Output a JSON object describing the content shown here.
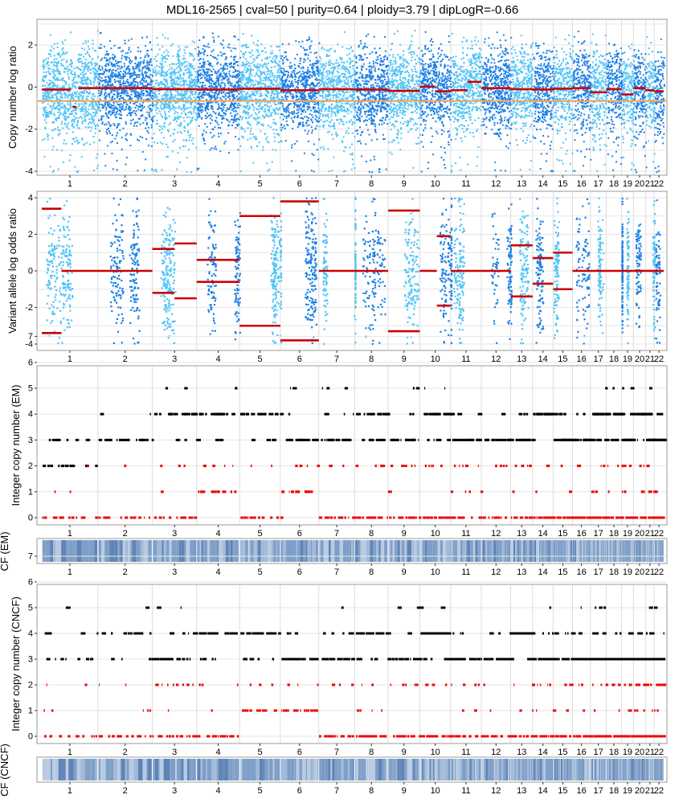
{
  "title": "MDL16-2565 | cval=50 | purity=0.64 | ploidy=3.79 | dipLogR=-0.66",
  "colors": {
    "light_blue": "#4fc3f7",
    "dark_blue": "#1a7fe6",
    "segment_red": "#cc0000",
    "diplogr_line": "#e8a86a",
    "total_cn": "#000000",
    "minor_cn": "#ee0000",
    "cf_base": "#7d9fc8",
    "cf_light": "#b9cbe2",
    "cf_dark": "#5f84b5",
    "grid": "#e6e6e6",
    "panel_border": "#9a9a9a"
  },
  "chart_data": {
    "type": "scatter",
    "chromosomes": [
      "1",
      "2",
      "3",
      "4",
      "5",
      "6",
      "7",
      "8",
      "9",
      "10",
      "11",
      "12",
      "13",
      "14",
      "15",
      "16",
      "17",
      "18",
      "19",
      "20",
      "21",
      "22"
    ],
    "chrom_bounds": [
      0,
      1.0,
      1.97,
      2.76,
      3.525,
      4.25,
      4.935,
      5.575,
      6.17,
      6.735,
      7.285,
      7.83,
      8.355,
      8.745,
      9.11,
      9.455,
      9.775,
      10.055,
      10.33,
      10.54,
      10.76,
      10.91,
      11.08
    ],
    "panels": [
      {
        "id": "cnlr",
        "ylabel": "Copy number log ratio",
        "ylim": [
          -4.2,
          3.3
        ],
        "yticks": [
          -4,
          -2,
          0,
          2
        ],
        "diplogr": -0.66,
        "segments": [
          {
            "chrom": "1",
            "from": 0.0,
            "to": 0.52,
            "y": -0.12
          },
          {
            "chrom": "1",
            "from": 0.55,
            "to": 0.62,
            "y": -0.95
          },
          {
            "chrom": "1",
            "from": 0.65,
            "to": 1.0,
            "y": -0.05
          },
          {
            "chrom": "2",
            "from": 0.0,
            "to": 1.0,
            "y": -0.05
          },
          {
            "chrom": "3",
            "from": 0.0,
            "to": 1.0,
            "y": -0.1
          },
          {
            "chrom": "4",
            "from": 0.0,
            "to": 1.0,
            "y": -0.12
          },
          {
            "chrom": "5",
            "from": 0.0,
            "to": 1.0,
            "y": -0.08
          },
          {
            "chrom": "6",
            "from": 0.0,
            "to": 1.0,
            "y": -0.15
          },
          {
            "chrom": "7",
            "from": 0.0,
            "to": 1.0,
            "y": -0.1
          },
          {
            "chrom": "8",
            "from": 0.0,
            "to": 1.0,
            "y": -0.12
          },
          {
            "chrom": "9",
            "from": 0.0,
            "to": 1.0,
            "y": -0.18
          },
          {
            "chrom": "10",
            "from": 0.0,
            "to": 0.5,
            "y": 0.02
          },
          {
            "chrom": "10",
            "from": 0.5,
            "to": 1.0,
            "y": -0.2
          },
          {
            "chrom": "11",
            "from": 0.0,
            "to": 0.55,
            "y": -0.15
          },
          {
            "chrom": "11",
            "from": 0.55,
            "to": 1.0,
            "y": 0.25
          },
          {
            "chrom": "12",
            "from": 0.0,
            "to": 1.0,
            "y": -0.05
          },
          {
            "chrom": "13",
            "from": 0.0,
            "to": 1.0,
            "y": -0.1
          },
          {
            "chrom": "14",
            "from": 0.0,
            "to": 1.0,
            "y": -0.12
          },
          {
            "chrom": "15",
            "from": 0.0,
            "to": 1.0,
            "y": -0.08
          },
          {
            "chrom": "16",
            "from": 0.0,
            "to": 1.0,
            "y": -0.05
          },
          {
            "chrom": "17",
            "from": 0.0,
            "to": 1.0,
            "y": -0.25
          },
          {
            "chrom": "18",
            "from": 0.0,
            "to": 1.0,
            "y": -0.1
          },
          {
            "chrom": "19",
            "from": 0.0,
            "to": 1.0,
            "y": -0.35
          },
          {
            "chrom": "20",
            "from": 0.0,
            "to": 1.0,
            "y": -0.05
          },
          {
            "chrom": "21",
            "from": 0.0,
            "to": 1.0,
            "y": -0.15
          },
          {
            "chrom": "22",
            "from": 0.0,
            "to": 1.0,
            "y": -0.2
          }
        ]
      },
      {
        "id": "valor",
        "ylabel": "Variant allele log odds ratio",
        "ylim": [
          -4.4,
          4.4
        ],
        "yticks": [
          -4,
          -2,
          0,
          2,
          4
        ],
        "segments": [
          {
            "chrom": "1",
            "from": 0.0,
            "to": 0.35,
            "y": 3.4
          },
          {
            "chrom": "1",
            "from": 0.0,
            "to": 0.35,
            "y": -3.4
          },
          {
            "chrom": "1",
            "from": 0.35,
            "to": 1.0,
            "y": 0.0
          },
          {
            "chrom": "2",
            "from": 0.0,
            "to": 1.0,
            "y": 0.0
          },
          {
            "chrom": "3",
            "from": 0.0,
            "to": 0.5,
            "y": 1.2
          },
          {
            "chrom": "3",
            "from": 0.0,
            "to": 0.5,
            "y": -1.2
          },
          {
            "chrom": "3",
            "from": 0.5,
            "to": 1.0,
            "y": 1.5
          },
          {
            "chrom": "3",
            "from": 0.5,
            "to": 1.0,
            "y": -1.5
          },
          {
            "chrom": "4",
            "from": 0.0,
            "to": 1.0,
            "y": 0.6
          },
          {
            "chrom": "4",
            "from": 0.0,
            "to": 1.0,
            "y": -0.6
          },
          {
            "chrom": "5",
            "from": 0.0,
            "to": 1.0,
            "y": 3.0
          },
          {
            "chrom": "5",
            "from": 0.0,
            "to": 1.0,
            "y": -3.0
          },
          {
            "chrom": "6",
            "from": 0.0,
            "to": 1.0,
            "y": 3.8
          },
          {
            "chrom": "6",
            "from": 0.0,
            "to": 1.0,
            "y": -3.8
          },
          {
            "chrom": "7",
            "from": 0.0,
            "to": 1.0,
            "y": 0.0
          },
          {
            "chrom": "8",
            "from": 0.0,
            "to": 1.0,
            "y": 0.0
          },
          {
            "chrom": "9",
            "from": 0.0,
            "to": 1.0,
            "y": 3.3
          },
          {
            "chrom": "9",
            "from": 0.0,
            "to": 1.0,
            "y": -3.3
          },
          {
            "chrom": "10",
            "from": 0.0,
            "to": 0.55,
            "y": 0.0
          },
          {
            "chrom": "10",
            "from": 0.55,
            "to": 1.0,
            "y": 1.9
          },
          {
            "chrom": "10",
            "from": 0.55,
            "to": 1.0,
            "y": -1.9
          },
          {
            "chrom": "11",
            "from": 0.0,
            "to": 1.0,
            "y": 0.0
          },
          {
            "chrom": "12",
            "from": 0.0,
            "to": 1.0,
            "y": 0.0
          },
          {
            "chrom": "13",
            "from": 0.0,
            "to": 1.0,
            "y": 1.4
          },
          {
            "chrom": "13",
            "from": 0.0,
            "to": 1.0,
            "y": -1.4
          },
          {
            "chrom": "14",
            "from": 0.0,
            "to": 1.0,
            "y": 0.7
          },
          {
            "chrom": "14",
            "from": 0.0,
            "to": 1.0,
            "y": -0.7
          },
          {
            "chrom": "15",
            "from": 0.0,
            "to": 1.0,
            "y": 1.0
          },
          {
            "chrom": "15",
            "from": 0.0,
            "to": 1.0,
            "y": -1.0
          },
          {
            "chrom": "16",
            "from": 0.0,
            "to": 1.0,
            "y": 0.0
          },
          {
            "chrom": "17",
            "from": 0.0,
            "to": 1.0,
            "y": 0.0
          },
          {
            "chrom": "18",
            "from": 0.0,
            "to": 1.0,
            "y": 0.0
          },
          {
            "chrom": "19",
            "from": 0.0,
            "to": 1.0,
            "y": 0.0
          },
          {
            "chrom": "20",
            "from": 0.0,
            "to": 1.0,
            "y": 0.0
          },
          {
            "chrom": "21",
            "from": 0.0,
            "to": 1.0,
            "y": 0.0
          },
          {
            "chrom": "22",
            "from": 0.0,
            "to": 1.0,
            "y": 0.0
          }
        ]
      },
      {
        "id": "icn_em",
        "ylabel": "Integer copy number (EM)",
        "yticks": [
          0,
          1,
          2,
          3,
          4,
          5,
          6,
          7
        ],
        "total_cn": [
          2,
          3,
          4,
          4,
          4,
          3,
          3,
          4,
          3,
          4,
          3,
          3,
          3,
          4,
          3,
          3,
          4,
          4,
          3,
          4,
          3,
          3
        ],
        "minor_cn": [
          0,
          0,
          0,
          1,
          0,
          1,
          0,
          0,
          0,
          0,
          0,
          0,
          0,
          0,
          0,
          0,
          0,
          0,
          0,
          0,
          0,
          0
        ]
      },
      {
        "id": "cf_em",
        "ylabel": "CF (EM)"
      },
      {
        "id": "icn_cncf",
        "ylabel": "Integer copy number (CNCF)",
        "yticks": [
          0,
          1,
          2,
          3,
          4,
          5,
          6,
          7
        ],
        "total_cn": [
          3,
          4,
          3,
          4,
          4,
          3,
          3,
          4,
          3,
          4,
          3,
          3,
          4,
          3,
          3,
          3,
          3,
          3,
          3,
          3,
          3,
          3
        ],
        "minor_cn": [
          0,
          0,
          0,
          0,
          1,
          1,
          0,
          0,
          0,
          0,
          0,
          0,
          0,
          0,
          0,
          0,
          0,
          0,
          0,
          0,
          0,
          0
        ]
      },
      {
        "id": "cf_cncf",
        "ylabel": "CF (CNCF)"
      }
    ]
  }
}
